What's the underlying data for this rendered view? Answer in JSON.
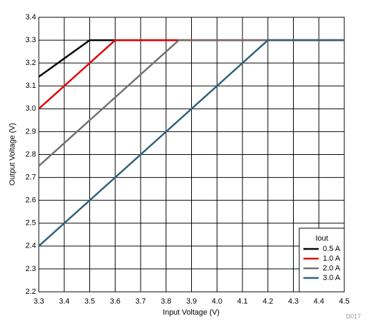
{
  "chart_data": {
    "type": "line",
    "x_label": "Input Voltage (V)",
    "y_label": "Output Voltage (V)",
    "legend_title": "Iout",
    "legend": "lower right",
    "grid": true,
    "annotation": "D017",
    "xlim": [
      3.3,
      4.5
    ],
    "ylim": [
      2.2,
      3.4
    ],
    "xticks": [
      3.3,
      3.4,
      3.5,
      3.6,
      3.7,
      3.8,
      3.9,
      {
        "value": 4,
        "label": "4.0"
      },
      4.1,
      4.2,
      4.3,
      4.4,
      4.5
    ],
    "yticks": [
      2.2,
      2.3,
      2.4,
      2.5,
      2.6,
      2.7,
      2.8,
      2.9,
      {
        "value": 3,
        "label": "3.0"
      },
      3.1,
      3.2,
      3.3,
      3.4
    ],
    "series": [
      {
        "name": "0.5 A",
        "color": "#000000",
        "x": [
          3.3,
          3.5,
          4.5
        ],
        "values": [
          3.14,
          3.3,
          3.3
        ]
      },
      {
        "name": "1.0 A",
        "color": "#e00000",
        "x": [
          3.3,
          3.6,
          4.5
        ],
        "values": [
          3.0,
          3.3,
          3.3
        ]
      },
      {
        "name": "2.0 A",
        "color": "#707070",
        "x": [
          3.3,
          3.85,
          4.5
        ],
        "values": [
          2.75,
          3.3,
          3.3
        ]
      },
      {
        "name": "3.0 A",
        "color": "#2f5f7a",
        "x": [
          3.3,
          4.2,
          4.5
        ],
        "values": [
          2.4,
          3.3,
          3.3
        ]
      }
    ]
  }
}
